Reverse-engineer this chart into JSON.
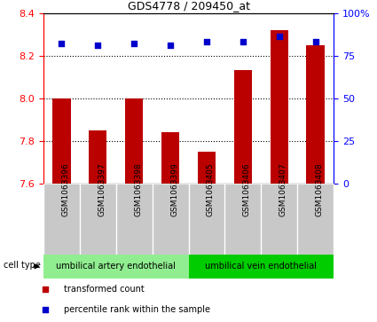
{
  "title": "GDS4778 / 209450_at",
  "samples": [
    "GSM1063396",
    "GSM1063397",
    "GSM1063398",
    "GSM1063399",
    "GSM1063405",
    "GSM1063406",
    "GSM1063407",
    "GSM1063408"
  ],
  "bar_values": [
    8.0,
    7.85,
    8.0,
    7.84,
    7.75,
    8.13,
    8.32,
    8.25
  ],
  "percentile_values": [
    82,
    81,
    82,
    81,
    83,
    83,
    86,
    83
  ],
  "bar_color": "#bb0000",
  "dot_color": "#0000cc",
  "ylim_left": [
    7.6,
    8.4
  ],
  "ylim_right": [
    0,
    100
  ],
  "yticks_left": [
    7.6,
    7.8,
    8.0,
    8.2,
    8.4
  ],
  "yticks_right": [
    0,
    25,
    50,
    75,
    100
  ],
  "ytick_labels_right": [
    "0",
    "25",
    "50",
    "75",
    "100%"
  ],
  "grid_values": [
    7.8,
    8.0,
    8.2
  ],
  "group1_label": "umbilical artery endothelial",
  "group2_label": "umbilical vein endothelial",
  "group1_color": "#90ee90",
  "group2_color": "#00cc00",
  "cell_type_label": "cell type",
  "legend_bar_label": "transformed count",
  "legend_dot_label": "percentile rank within the sample",
  "background_color": "#ffffff",
  "plot_bg_color": "#ffffff",
  "tick_area_bg": "#c8c8c8",
  "bar_width": 0.5
}
